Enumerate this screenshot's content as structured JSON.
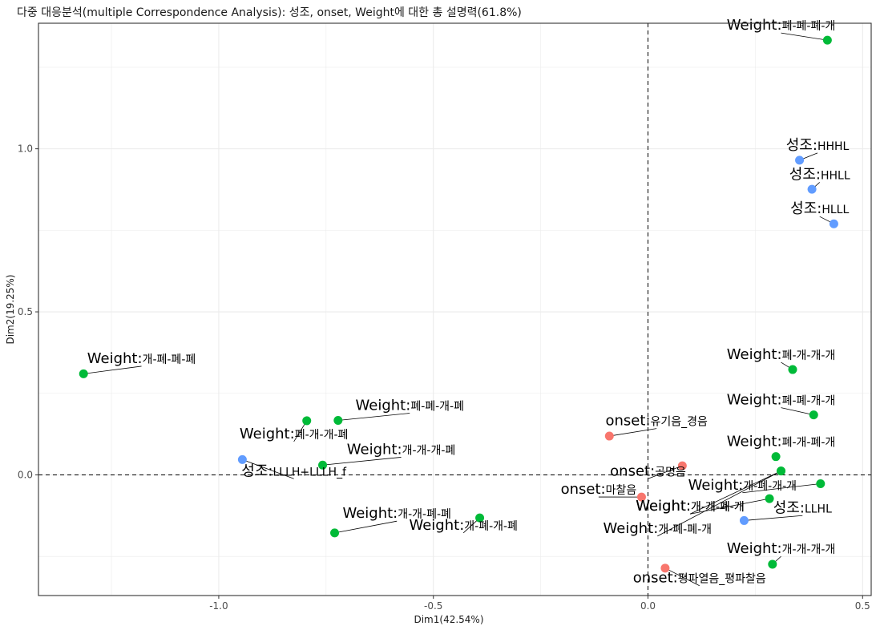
{
  "chart_data": {
    "type": "scatter",
    "title": "다중 대응분석(multiple Correspondence Analysis): 성조, onset, Weight에 대한 총 설명력(61.8%)",
    "xlabel": "Dim1(42.54%)",
    "ylabel": "Dim2(19.25%)",
    "xlim": [
      -1.42,
      0.52
    ],
    "ylim": [
      -0.37,
      1.385
    ],
    "xticks": [
      -1.0,
      -0.5,
      0.0,
      0.5
    ],
    "xtick_labels": [
      "-1.0",
      "-0.5",
      "0.0",
      "0.5"
    ],
    "yticks": [
      0.0,
      0.5,
      1.0
    ],
    "ytick_labels": [
      "0.0",
      "0.5",
      "1.0"
    ],
    "grid": true,
    "reference_lines": {
      "x": 0,
      "y": 0,
      "style": "dashed"
    },
    "colors": {
      "onset": "#F8766D",
      "Weight": "#00BA38",
      "성조": "#619CFF"
    },
    "points": [
      {
        "group": "Weight",
        "level": "폐-폐-폐-개",
        "x": 0.418,
        "y": 1.333,
        "color": "#00BA38",
        "lx": 0.31,
        "ly": 1.365
      },
      {
        "group": "성조",
        "level": "HHHL",
        "x": 0.353,
        "y": 0.965,
        "color": "#619CFF",
        "lx": 0.395,
        "ly": 0.997
      },
      {
        "group": "성조",
        "level": "HHLL",
        "x": 0.382,
        "y": 0.876,
        "color": "#619CFF",
        "lx": 0.4,
        "ly": 0.907
      },
      {
        "group": "성조",
        "level": "HLLL",
        "x": 0.433,
        "y": 0.77,
        "color": "#619CFF",
        "lx": 0.4,
        "ly": 0.802
      },
      {
        "group": "Weight",
        "level": "개-폐-폐-폐",
        "x": -1.315,
        "y": 0.31,
        "color": "#00BA38",
        "lx": -1.18,
        "ly": 0.343
      },
      {
        "group": "Weight",
        "level": "폐-개-개-개",
        "x": 0.337,
        "y": 0.323,
        "color": "#00BA38",
        "lx": 0.31,
        "ly": 0.355
      },
      {
        "group": "Weight",
        "level": "폐-폐-개-개",
        "x": 0.386,
        "y": 0.184,
        "color": "#00BA38",
        "lx": 0.31,
        "ly": 0.216
      },
      {
        "group": "Weight",
        "level": "폐-폐-개-폐",
        "x": -0.722,
        "y": 0.167,
        "color": "#00BA38",
        "lx": -0.555,
        "ly": 0.199
      },
      {
        "group": "Weight",
        "level": "폐-개-개-폐",
        "x": -0.795,
        "y": 0.166,
        "color": "#00BA38",
        "lx": -0.825,
        "ly": 0.112
      },
      {
        "group": "onset",
        "level": "유기음_경음",
        "x": -0.09,
        "y": 0.119,
        "color": "#F8766D",
        "lx": 0.02,
        "ly": 0.152
      },
      {
        "group": "Weight",
        "level": "폐-개-폐-개",
        "x": 0.298,
        "y": 0.056,
        "color": "#00BA38",
        "lx": 0.31,
        "ly": 0.088
      },
      {
        "group": "Weight",
        "level": "개-개-개-폐",
        "x": -0.758,
        "y": 0.03,
        "color": "#00BA38",
        "lx": -0.575,
        "ly": 0.064
      },
      {
        "group": "onset",
        "level": "공명음",
        "x": 0.08,
        "y": 0.028,
        "color": "#F8766D",
        "lx": 0.0,
        "ly": -0.002
      },
      {
        "group": "성조",
        "level": "LLLH+LLLH_f",
        "x": -0.945,
        "y": 0.047,
        "color": "#619CFF",
        "lx": -0.825,
        "ly": -0.002
      },
      {
        "group": "Weight",
        "level": "개-폐-개-개",
        "x": 0.402,
        "y": -0.027,
        "color": "#00BA38",
        "lx": 0.22,
        "ly": -0.045
      },
      {
        "group": "onset",
        "level": "마찰음",
        "x": -0.015,
        "y": -0.068,
        "color": "#F8766D",
        "lx": -0.115,
        "ly": -0.058
      },
      {
        "group": "Weight",
        "level": "개-개-폐-개",
        "x": 0.31,
        "y": 0.012,
        "color": "#00BA38",
        "lx": 0.098,
        "ly": -0.11
      },
      {
        "group": "Weight",
        "level": "개-개-개-개",
        "x": 0.283,
        "y": -0.073,
        "color": "#00BA38",
        "lx": 0.098,
        "ly": -0.11
      },
      {
        "group": "성조",
        "level": "LLHL",
        "x": 0.224,
        "y": -0.14,
        "color": "#619CFF",
        "lx": 0.36,
        "ly": -0.115
      },
      {
        "group": "Weight",
        "level": "개-폐-폐-개",
        "x": 0.31,
        "y": 0.012,
        "color": "#00BA38",
        "lx": 0.022,
        "ly": -0.178
      },
      {
        "group": "Weight",
        "level": "개-개-폐-폐",
        "x": -0.73,
        "y": -0.178,
        "color": "#00BA38",
        "lx": -0.585,
        "ly": -0.132
      },
      {
        "group": "Weight",
        "level": "개-폐-개-폐",
        "x": -0.392,
        "y": -0.132,
        "color": "#00BA38",
        "lx": -0.43,
        "ly": -0.168
      },
      {
        "group": "Weight",
        "level": "개-개-개-개",
        "x": 0.29,
        "y": -0.274,
        "color": "#00BA38",
        "lx": 0.31,
        "ly": -0.24
      },
      {
        "group": "onset",
        "level": "평파열음_평파찰음",
        "x": 0.04,
        "y": -0.286,
        "color": "#F8766D",
        "lx": 0.12,
        "ly": -0.33
      }
    ]
  }
}
